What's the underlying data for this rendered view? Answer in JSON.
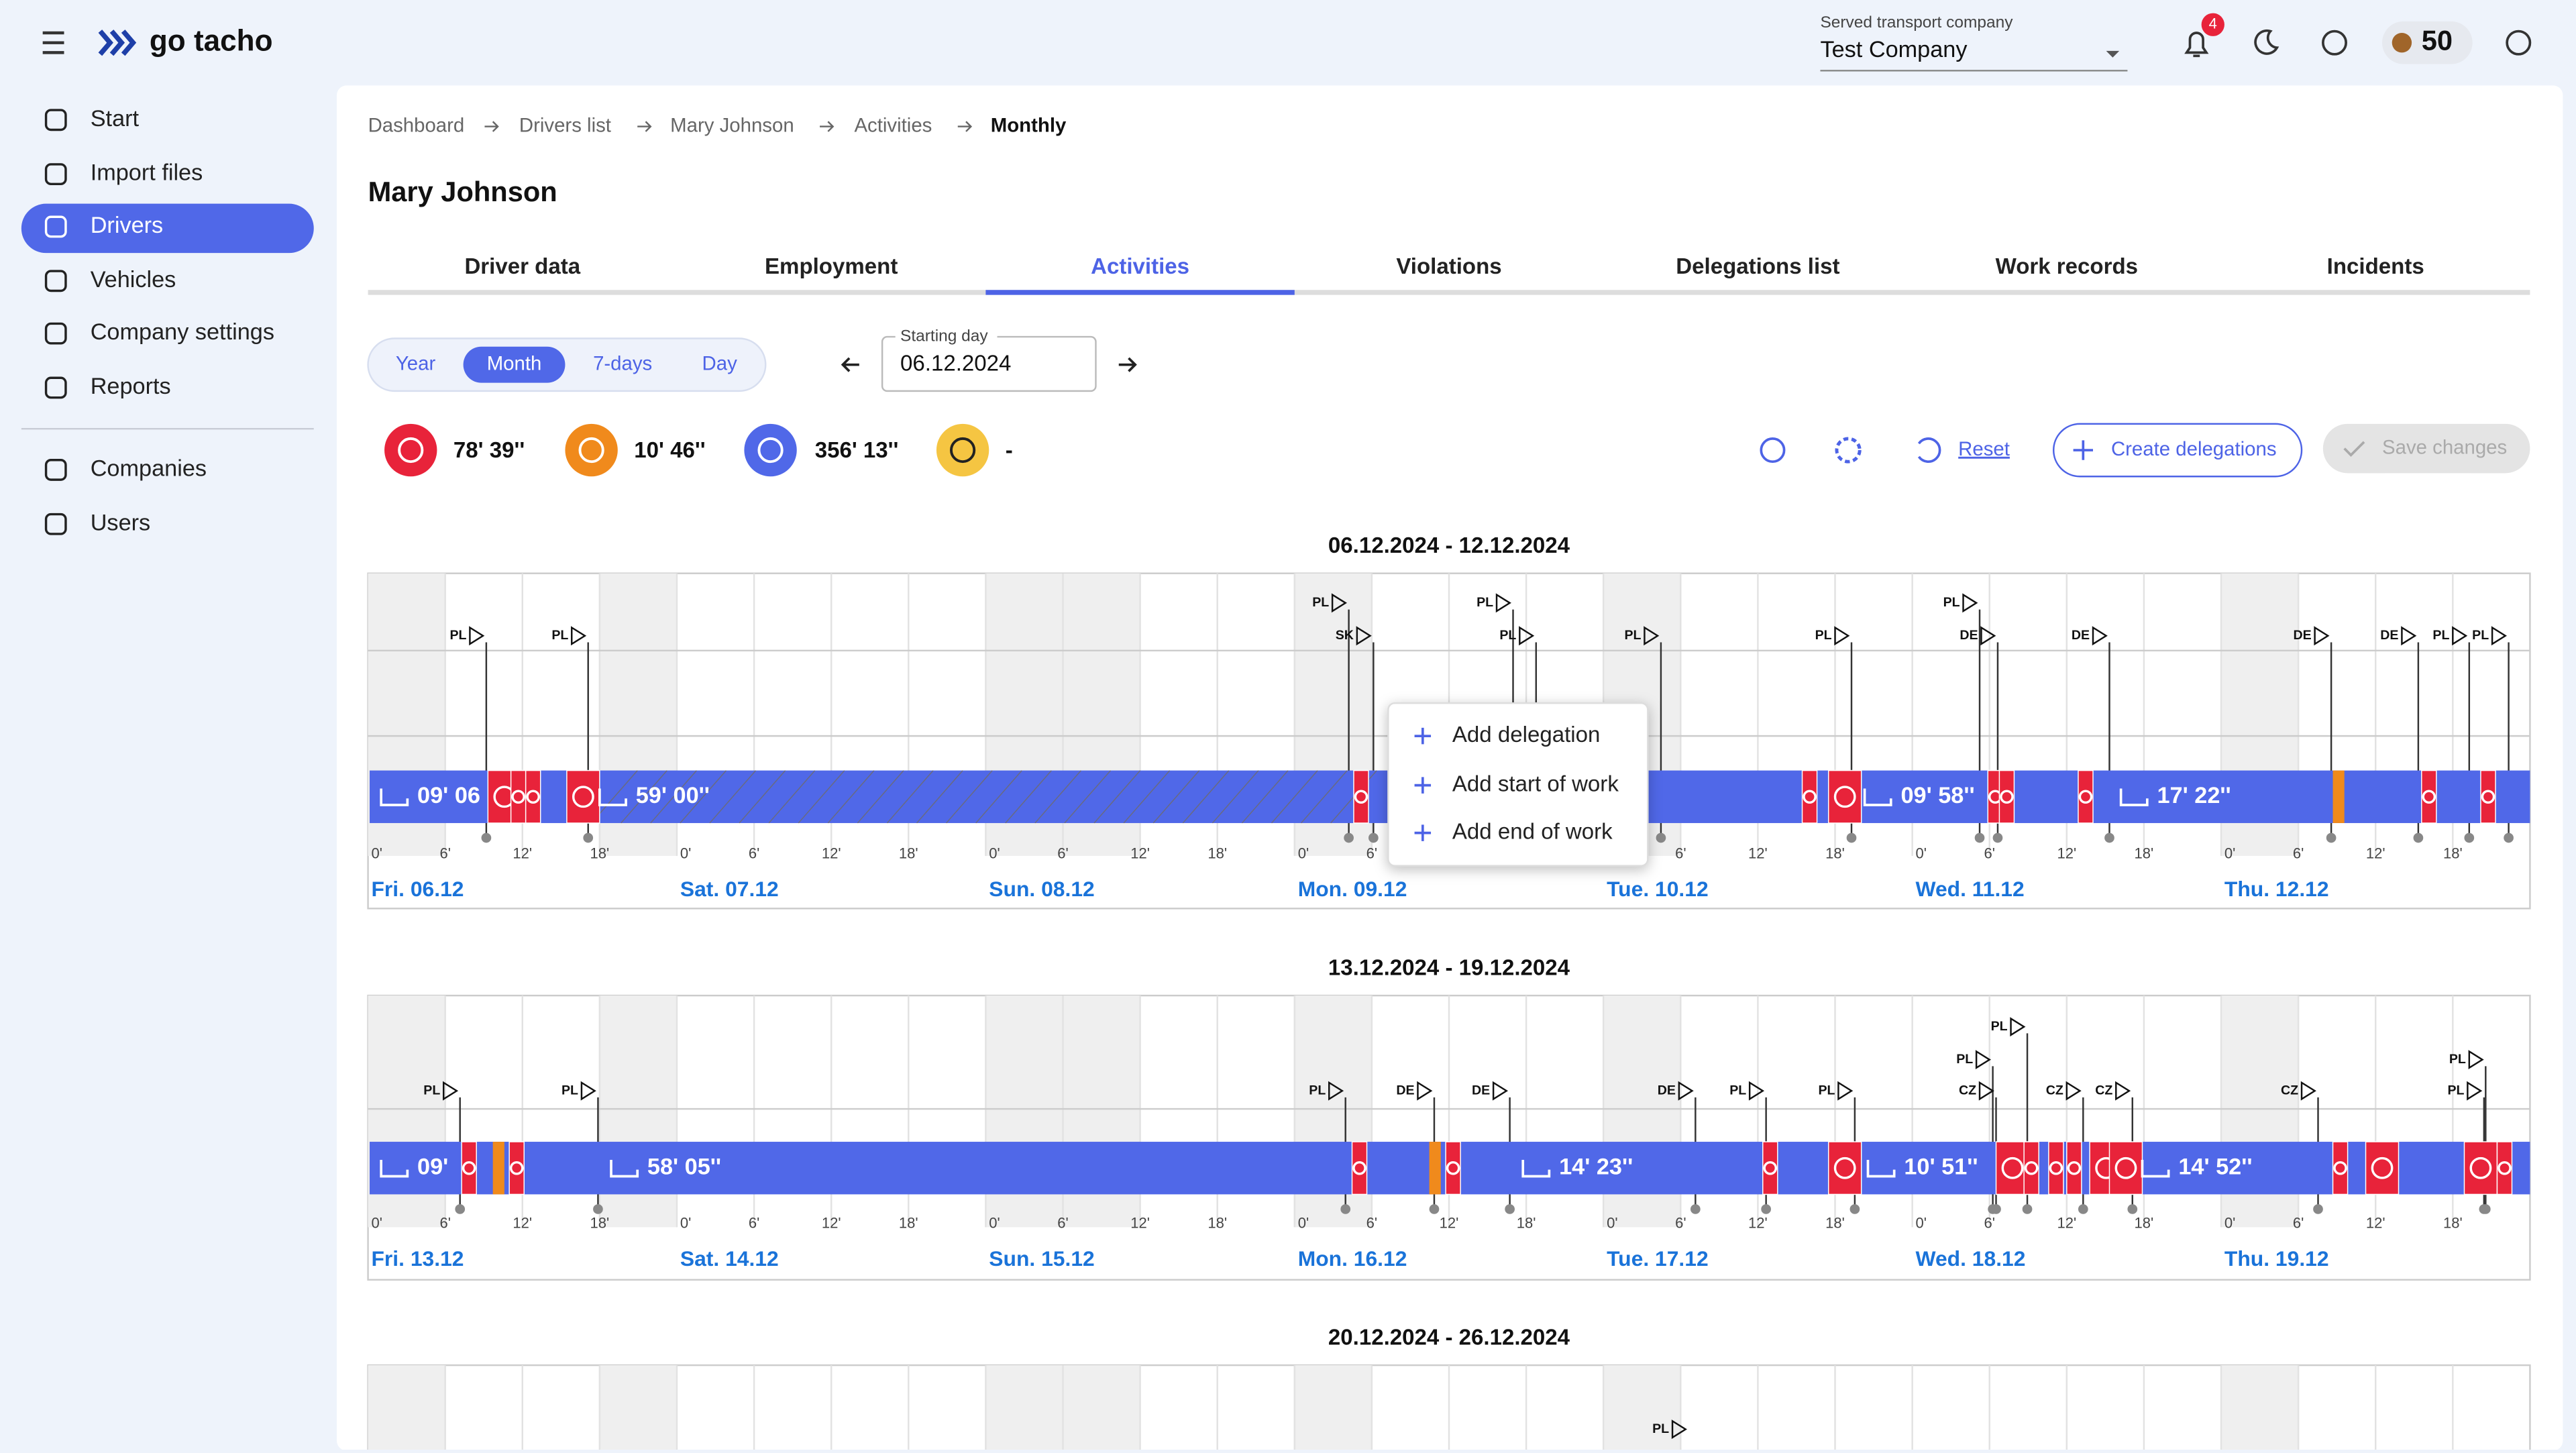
{
  "header": {
    "logo": "go tacho",
    "company_label": "Served transport company",
    "company": "Test Company",
    "notifications": "4",
    "coins": "50"
  },
  "sidebar": {
    "items": [
      "Start",
      "Import files",
      "Drivers",
      "Vehicles",
      "Company settings",
      "Reports"
    ],
    "secondary": [
      "Companies",
      "Users"
    ]
  },
  "breadcrumb": [
    "Dashboard",
    "Drivers list",
    "Mary Johnson",
    "Activities",
    "Monthly"
  ],
  "title": "Mary Johnson",
  "tabs": [
    "Driver data",
    "Employment",
    "Activities",
    "Violations",
    "Delegations list",
    "Work records",
    "Incidents"
  ],
  "period_options": [
    "Year",
    "Month",
    "7-days",
    "Day"
  ],
  "starting_day": {
    "label": "Starting day",
    "value": "06.12.2024"
  },
  "summary": [
    "78' 39''",
    "10' 46''",
    "356' 13''",
    "-"
  ],
  "actions": {
    "reset": "Reset",
    "create": "Create delegations",
    "save": "Save changes"
  },
  "hour_labels": [
    "0'",
    "6'",
    "12'",
    "18'"
  ],
  "weeks": [
    {
      "title": "06.12.2024 - 12.12.2024",
      "days": [
        "Fri. 06.12",
        "Sat. 07.12",
        "Sun. 08.12",
        "Mon. 09.12",
        "Tue. 10.12",
        "Wed. 11.12",
        "Thu. 12.12"
      ],
      "flags": [
        "PL",
        "PL",
        "PL",
        "SK",
        "PL",
        "PL",
        "PL",
        "PL",
        "PL",
        "DE",
        "DE",
        "DE",
        "DE",
        "PL",
        "PL"
      ],
      "bar_labels": [
        "09' 06",
        "59' 00''",
        "09' 58''",
        "17' 22''"
      ]
    },
    {
      "title": "13.12.2024 - 19.12.2024",
      "days": [
        "Fri. 13.12",
        "Sat. 14.12",
        "Sun. 15.12",
        "Mon. 16.12",
        "Tue. 17.12",
        "Wed. 18.12",
        "Thu. 19.12"
      ],
      "flags": [
        "PL",
        "PL",
        "PL",
        "DE",
        "DE",
        "DE",
        "PL",
        "PL",
        "PL",
        "PL",
        "CZ",
        "CZ",
        "CZ",
        "CZ",
        "PL",
        "PL"
      ],
      "bar_labels": [
        "09'",
        "58' 05''",
        "14' 23''",
        "10' 51''",
        "14' 52''"
      ]
    },
    {
      "title": "20.12.2024 - 26.12.2024",
      "flags": [
        "PL"
      ]
    }
  ],
  "context_menu": [
    "Add delegation",
    "Add start of work",
    "Add end of work"
  ]
}
